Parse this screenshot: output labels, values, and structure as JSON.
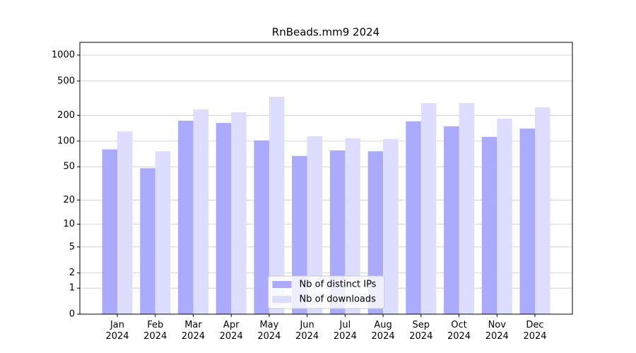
{
  "chart_data": {
    "type": "bar",
    "title": "RnBeads.mm9 2024",
    "categories": [
      "Jan\n2024",
      "Feb\n2024",
      "Mar\n2024",
      "Apr\n2024",
      "May\n2024",
      "Jun\n2024",
      "Jul\n2024",
      "Aug\n2024",
      "Sep\n2024",
      "Oct\n2024",
      "Nov\n2024",
      "Dec\n2024"
    ],
    "series": [
      {
        "name": "Nb of distinct IPs",
        "color": "#aaaaff",
        "values": [
          80,
          48,
          173,
          163,
          102,
          67,
          78,
          76,
          170,
          149,
          112,
          140
        ]
      },
      {
        "name": "Nb of downloads",
        "color": "#ddddff",
        "values": [
          130,
          76,
          234,
          217,
          329,
          114,
          108,
          106,
          277,
          277,
          183,
          248
        ]
      }
    ],
    "y_scale": "log1p",
    "ylim": [
      0,
      1405
    ],
    "yticks": [
      0,
      1,
      2,
      5,
      10,
      20,
      50,
      100,
      200,
      500,
      1000
    ],
    "grid": true,
    "legend": "lower center"
  }
}
